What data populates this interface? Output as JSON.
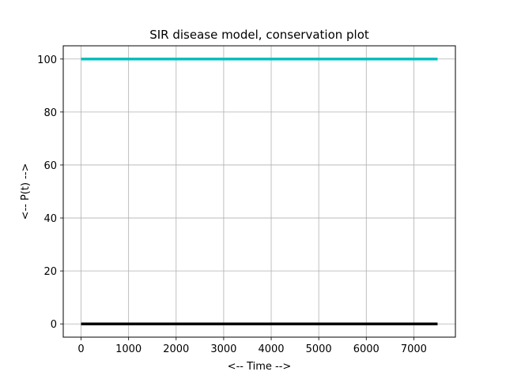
{
  "chart_data": {
    "type": "line",
    "title": "SIR disease model, conservation plot",
    "xlabel": "<-- Time -->",
    "ylabel": "<-- P(t) -->",
    "xlim": [
      -375,
      7875
    ],
    "ylim": [
      -5,
      105
    ],
    "xticks": [
      0,
      1000,
      2000,
      3000,
      4000,
      5000,
      6000,
      7000
    ],
    "yticks": [
      0,
      20,
      40,
      60,
      80,
      100
    ],
    "grid": true,
    "legend": "none",
    "series": [
      {
        "x": [
          0,
          7500
        ],
        "y": [
          100,
          100
        ],
        "color": "#00bfbf"
      },
      {
        "x": [
          0,
          7500
        ],
        "y": [
          0,
          0
        ],
        "color": "#000000"
      }
    ]
  }
}
